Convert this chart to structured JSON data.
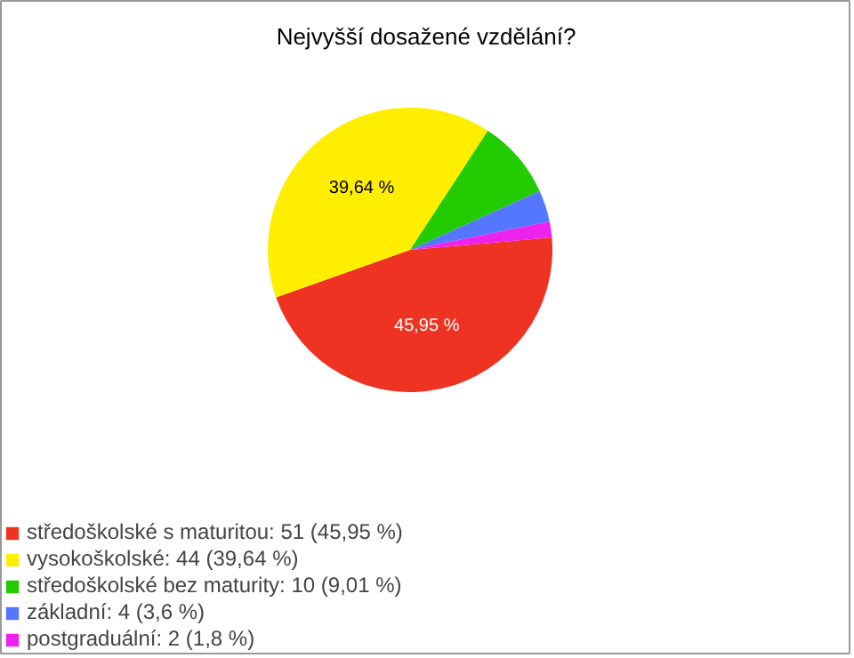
{
  "chart_data": {
    "type": "pie",
    "title": "Nejvyšší dosažené vzdělání?",
    "categories": [
      "středoškolské s maturitou: 51 (45,95 %)",
      "vysokoškolské: 44 (39,64 %)",
      "středoškolské bez maturity: 10 (9,01 %)",
      "základní: 4 (3,6 %)",
      "postgraduální: 2 (1,8 %)"
    ],
    "values": [
      45.95,
      39.64,
      9.01,
      3.6,
      1.8
    ],
    "colors": [
      "#ee3322",
      "#ffee00",
      "#22cc00",
      "#5577ff",
      "#ee22ee"
    ],
    "value_labels": [
      "45,95 %",
      "39,64 %",
      null,
      null,
      null
    ],
    "legend": "bottom left"
  }
}
